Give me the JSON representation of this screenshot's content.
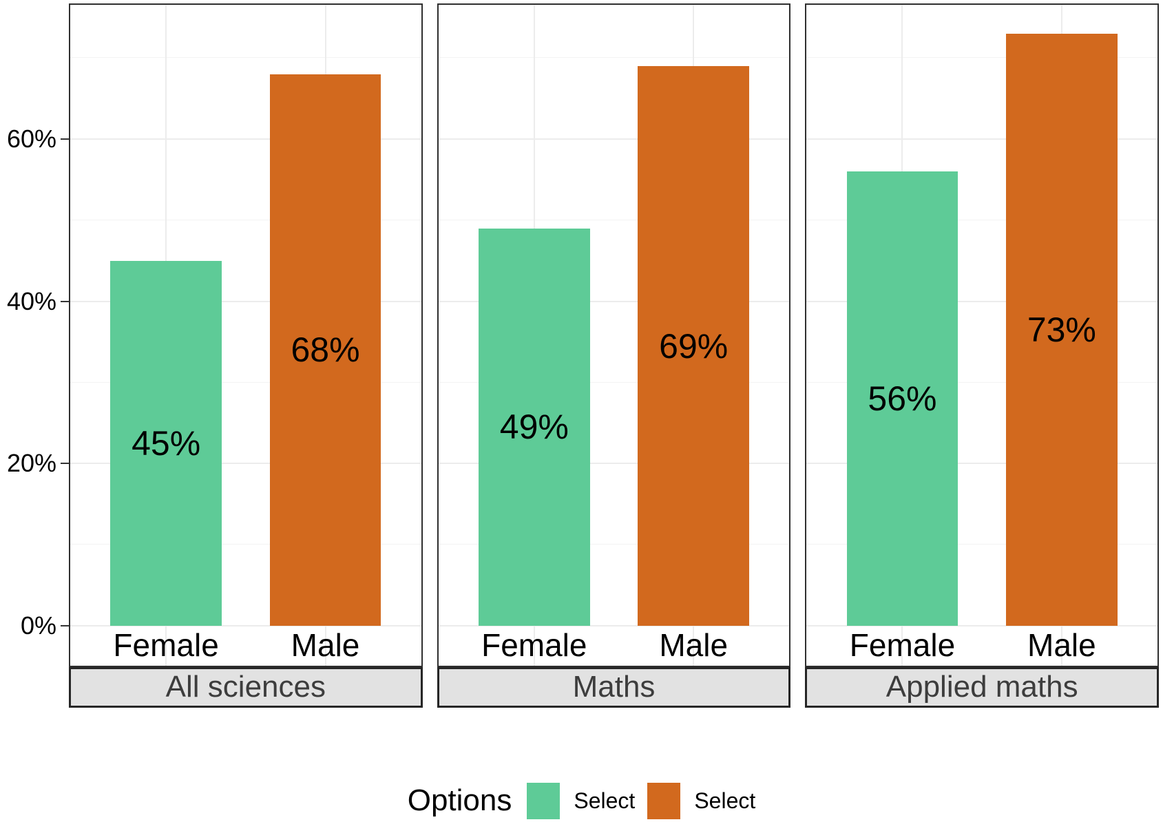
{
  "chart_data": {
    "type": "bar",
    "title": "",
    "facets": [
      {
        "label": "All sciences",
        "bars": [
          {
            "category": "Female",
            "series": "Select",
            "value": 45,
            "value_label": "45%"
          },
          {
            "category": "Male",
            "series": "Select",
            "value": 68,
            "value_label": "68%"
          }
        ]
      },
      {
        "label": "Maths",
        "bars": [
          {
            "category": "Female",
            "series": "Select",
            "value": 49,
            "value_label": "49%"
          },
          {
            "category": "Male",
            "series": "Select",
            "value": 69,
            "value_label": "69%"
          }
        ]
      },
      {
        "label": "Applied maths",
        "bars": [
          {
            "category": "Female",
            "series": "Select",
            "value": 56,
            "value_label": "56%"
          },
          {
            "category": "Male",
            "series": "Select",
            "value": 73,
            "value_label": "73%"
          }
        ]
      }
    ],
    "categories": [
      "Female",
      "Male"
    ],
    "series": [
      {
        "name": "Select",
        "color": "#5ecb97"
      },
      {
        "name": "Select",
        "color": "#d2691e"
      }
    ],
    "y_axis": {
      "unit": "percent",
      "domain": [
        -5.2,
        76.7
      ],
      "ticks": [
        {
          "value": 0,
          "label": "0%"
        },
        {
          "value": 20,
          "label": "20%"
        },
        {
          "value": 40,
          "label": "40%"
        },
        {
          "value": 60,
          "label": "60%"
        }
      ],
      "minor_ticks": [
        10,
        30,
        50,
        70
      ]
    },
    "grid": true,
    "legend": {
      "position": "bottom",
      "title": "Options",
      "items": [
        {
          "label": "Select",
          "color": "#5ecb97"
        },
        {
          "label": "Select",
          "color": "#d2691e"
        }
      ]
    }
  },
  "colors": {
    "bar_green": "#5ecb97",
    "bar_orange": "#d2691e",
    "strip_background": "#e2e2e2",
    "strip_text": "#3d3d3d",
    "panel_border": "#2f2f2f",
    "grid_major": "#ececec",
    "grid_minor": "#f3f3f3",
    "axis_text": "#000000"
  }
}
